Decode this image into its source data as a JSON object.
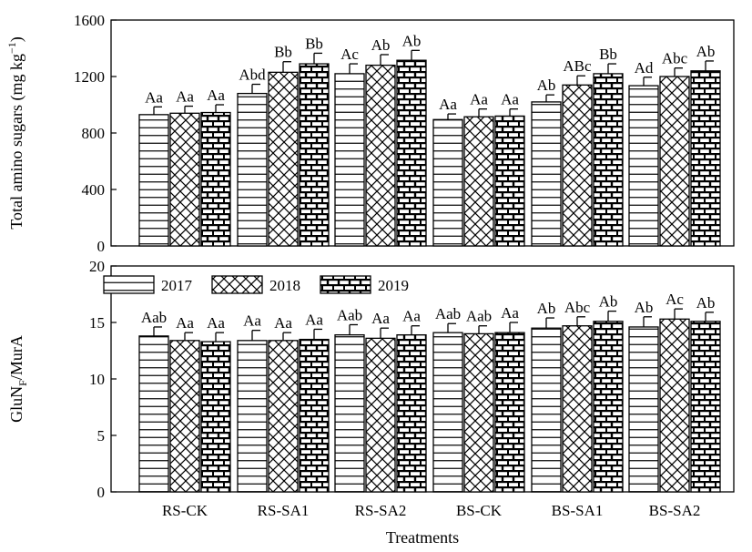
{
  "chart_data": [
    {
      "type": "bar",
      "categories": [
        "RS-CK",
        "RS-SA1",
        "RS-SA2",
        "BS-CK",
        "BS-SA1",
        "BS-SA2"
      ],
      "series": [
        {
          "name": "2017",
          "values": [
            930,
            1080,
            1220,
            895,
            1020,
            1135
          ],
          "errors": [
            55,
            65,
            70,
            40,
            50,
            60
          ],
          "labels": [
            "Aa",
            "Abd",
            "Ac",
            "Aa",
            "Ab",
            "Ad"
          ]
        },
        {
          "name": "2018",
          "values": [
            940,
            1230,
            1280,
            915,
            1140,
            1200
          ],
          "errors": [
            50,
            75,
            75,
            55,
            65,
            60
          ],
          "labels": [
            "Aa",
            "Bb",
            "Ab",
            "Aa",
            "ABc",
            "Abc"
          ]
        },
        {
          "name": "2019",
          "values": [
            945,
            1290,
            1315,
            920,
            1220,
            1240
          ],
          "errors": [
            55,
            75,
            70,
            50,
            70,
            70
          ],
          "labels": [
            "Aa",
            "Bb",
            "Ab",
            "Aa",
            "Bb",
            "Ab"
          ]
        }
      ],
      "ylabel_main": "Total amino sugars (mg kg",
      "ylabel_sup": "−1",
      "ylabel_end": ")",
      "ylim": [
        0,
        1600
      ],
      "yticks": [
        "0",
        "400",
        "800",
        "1200",
        "1600"
      ],
      "legend": "none"
    },
    {
      "type": "bar",
      "categories": [
        "RS-CK",
        "RS-SA1",
        "RS-SA2",
        "BS-CK",
        "BS-SA1",
        "BS-SA2"
      ],
      "series": [
        {
          "name": "2017",
          "values": [
            13.8,
            13.4,
            13.9,
            14.1,
            14.5,
            14.6
          ],
          "errors": [
            0.8,
            0.9,
            0.9,
            0.8,
            0.9,
            0.9
          ],
          "labels": [
            "Aab",
            "Aa",
            "Aab",
            "Aab",
            "Ab",
            "Ab"
          ]
        },
        {
          "name": "2018",
          "values": [
            13.4,
            13.4,
            13.6,
            14.0,
            14.7,
            15.3
          ],
          "errors": [
            0.7,
            0.7,
            0.9,
            0.7,
            0.8,
            0.9
          ],
          "labels": [
            "Aa",
            "Aa",
            "Aa",
            "Aab",
            "Abc",
            "Ac"
          ]
        },
        {
          "name": "2019",
          "values": [
            13.3,
            13.5,
            13.9,
            14.1,
            15.1,
            15.1
          ],
          "errors": [
            0.8,
            0.9,
            0.8,
            0.9,
            0.9,
            0.8
          ],
          "labels": [
            "Aa",
            "Aa",
            "Aa",
            "Aa",
            "Ab",
            "Ab"
          ]
        }
      ],
      "ylabel_main": "GluN",
      "ylabel_sub": "F",
      "ylabel_end": "/MurA",
      "xlabel": "Treatments",
      "ylim": [
        0,
        20
      ],
      "yticks": [
        "0",
        "5",
        "10",
        "15",
        "20"
      ],
      "legend": "top-left",
      "legend_entries": [
        "2017",
        "2018",
        "2019"
      ]
    }
  ]
}
